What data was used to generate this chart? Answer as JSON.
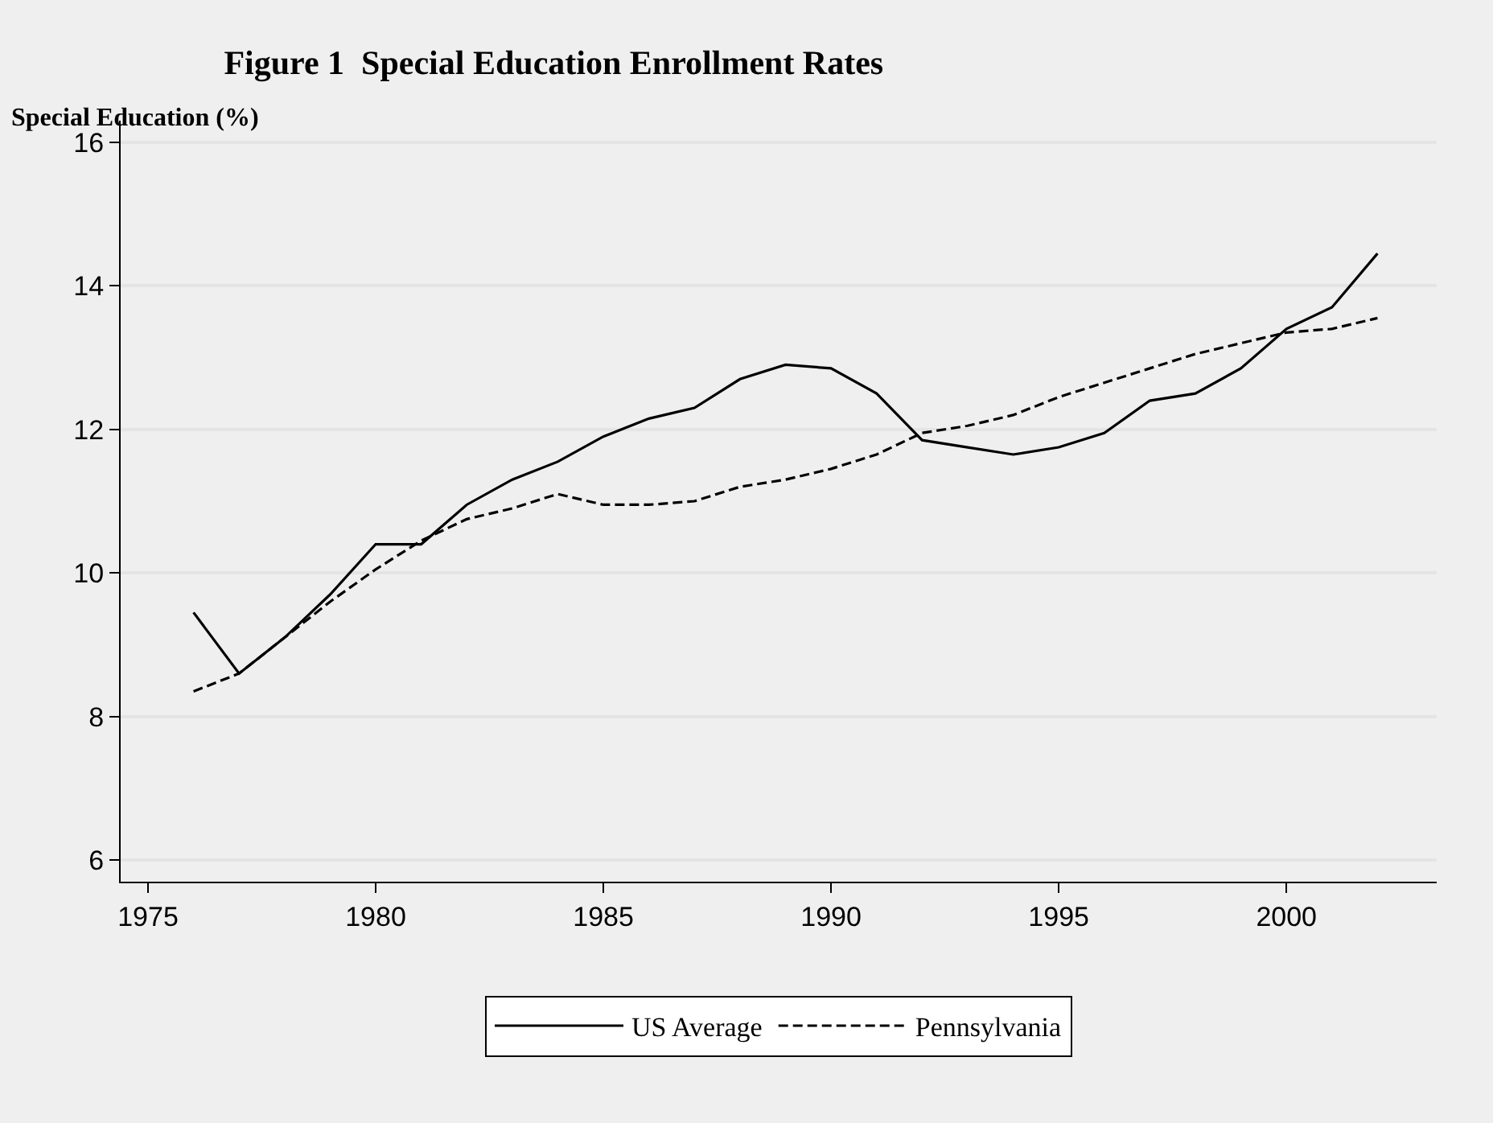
{
  "chart_data": {
    "type": "line",
    "title": "Figure 1  Special Education Enrollment Rates",
    "ylabel": "Special Education (%)",
    "x": [
      1976,
      1977,
      1978,
      1979,
      1980,
      1981,
      1982,
      1983,
      1984,
      1985,
      1986,
      1987,
      1988,
      1989,
      1990,
      1991,
      1992,
      1993,
      1994,
      1995,
      1996,
      1997,
      1998,
      1999,
      2000,
      2001,
      2002
    ],
    "series": [
      {
        "name": "US Average",
        "color": "#000000",
        "line_style": "solid",
        "values": [
          9.45,
          8.6,
          9.1,
          9.7,
          10.4,
          10.4,
          10.95,
          11.3,
          11.55,
          11.9,
          12.15,
          12.3,
          12.7,
          12.9,
          12.85,
          12.5,
          11.85,
          11.75,
          11.65,
          11.75,
          11.95,
          12.4,
          12.5,
          12.85,
          13.4,
          13.7,
          14.45
        ]
      },
      {
        "name": "Pennsylvania",
        "color": "#000000",
        "line_style": "dashed",
        "values": [
          8.35,
          8.6,
          9.1,
          9.6,
          10.05,
          10.45,
          10.75,
          10.9,
          11.1,
          10.95,
          10.95,
          11.0,
          11.2,
          11.3,
          11.45,
          11.65,
          11.95,
          12.05,
          12.2,
          12.45,
          12.65,
          12.85,
          13.05,
          13.2,
          13.35,
          13.4,
          13.55
        ]
      }
    ],
    "xlim": [
      1974.4,
      2003.3
    ],
    "xticks": [
      1975,
      1980,
      1985,
      1990,
      1995,
      2000
    ],
    "ylim": [
      5.7,
      16.3
    ],
    "yticks": [
      6,
      8,
      10,
      12,
      14,
      16
    ],
    "grid": "y",
    "legend": "bottom",
    "marker": "none"
  }
}
